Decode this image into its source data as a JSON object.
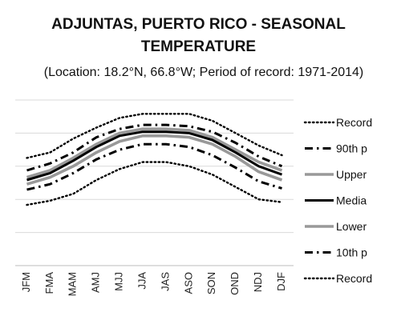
{
  "chart_data": {
    "type": "line",
    "title_line1": "ADJUNTAS, PUERTO RICO - SEASONAL",
    "title_line2": "TEMPERATURE",
    "subtitle": "(Location: 18.2°N, 66.8°W; Period of record: 1971-2014)",
    "categories": [
      "JFM",
      "FMA",
      "MAM",
      "AMJ",
      "MJJ",
      "JJA",
      "JAS",
      "ASO",
      "SON",
      "OND",
      "NDJ",
      "DJF"
    ],
    "ylim": [
      0,
      6
    ],
    "grid": true,
    "legend_position": "right",
    "series": [
      {
        "name": "Record",
        "style": "dotted",
        "color": "#000000",
        "values": [
          3.9,
          4.1,
          4.6,
          5.0,
          5.35,
          5.5,
          5.5,
          5.5,
          5.25,
          4.8,
          4.35,
          4.0
        ]
      },
      {
        "name": "90th p",
        "style": "dashdot",
        "color": "#000000",
        "values": [
          3.45,
          3.7,
          4.1,
          4.65,
          4.95,
          5.1,
          5.1,
          5.05,
          4.85,
          4.45,
          3.95,
          3.6
        ]
      },
      {
        "name": "Upper",
        "style": "solid",
        "color": "#999999",
        "values": [
          3.2,
          3.45,
          3.9,
          4.4,
          4.8,
          4.95,
          4.95,
          4.9,
          4.65,
          4.2,
          3.75,
          3.45
        ]
      },
      {
        "name": "Media",
        "style": "solid",
        "color": "#000000",
        "values": [
          3.1,
          3.35,
          3.8,
          4.3,
          4.7,
          4.85,
          4.85,
          4.8,
          4.55,
          4.1,
          3.6,
          3.3
        ]
      },
      {
        "name": "Lower",
        "style": "solid",
        "color": "#999999",
        "values": [
          2.95,
          3.2,
          3.6,
          4.1,
          4.5,
          4.7,
          4.7,
          4.65,
          4.4,
          3.95,
          3.4,
          3.1
        ]
      },
      {
        "name": "10th p",
        "style": "dashdot",
        "color": "#000000",
        "values": [
          2.75,
          2.95,
          3.35,
          3.85,
          4.2,
          4.4,
          4.4,
          4.3,
          4.0,
          3.55,
          3.05,
          2.8
        ]
      },
      {
        "name": "Record",
        "style": "dotted",
        "color": "#000000",
        "values": [
          2.2,
          2.35,
          2.6,
          3.1,
          3.5,
          3.75,
          3.75,
          3.6,
          3.3,
          2.85,
          2.4,
          2.3
        ]
      }
    ]
  }
}
